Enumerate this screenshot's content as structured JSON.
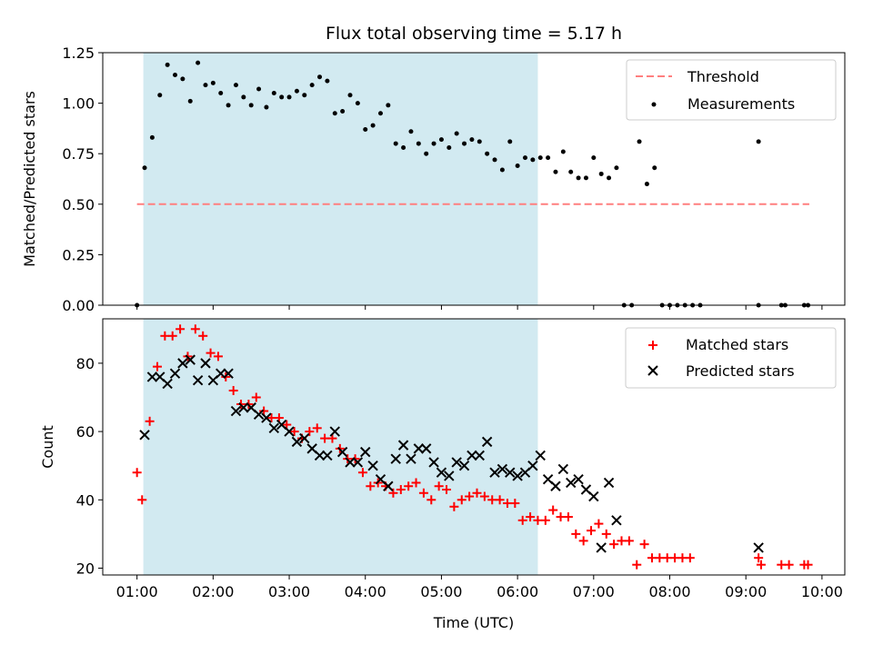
{
  "chart_data": {
    "title": "Flux total observing time = 5.17 h",
    "xlabel": "Time (UTC)",
    "x_ticks": [
      "01:00",
      "02:00",
      "03:00",
      "04:00",
      "05:00",
      "06:00",
      "07:00",
      "08:00",
      "09:00",
      "10:00"
    ],
    "xlim": [
      "00:33",
      "10:18"
    ],
    "shaded_interval": [
      "01:05",
      "06:16"
    ],
    "colors": {
      "shade": "#add8e6",
      "threshold": "#ff7f7f",
      "measurements": "#000000",
      "matched": "#ff0000",
      "predicted": "#000000"
    },
    "panels": [
      {
        "type": "scatter",
        "ylabel": "Matched/Predicted stars",
        "ylim": [
          0,
          1.25
        ],
        "y_ticks": [
          "0.00",
          "0.25",
          "0.50",
          "0.75",
          "1.00",
          "1.25"
        ],
        "legend": {
          "placement": "top-right",
          "entries": [
            "Threshold",
            "Measurements"
          ]
        },
        "threshold": {
          "name": "Threshold",
          "value": 0.5,
          "x_start": "01:00",
          "x_end": "09:50"
        },
        "series": [
          {
            "name": "Measurements",
            "marker": "dot",
            "points": [
              [
                "01:00",
                0.0
              ],
              [
                "01:06",
                0.68
              ],
              [
                "01:12",
                0.83
              ],
              [
                "01:18",
                1.04
              ],
              [
                "01:24",
                1.19
              ],
              [
                "01:30",
                1.14
              ],
              [
                "01:36",
                1.12
              ],
              [
                "01:42",
                1.01
              ],
              [
                "01:48",
                1.2
              ],
              [
                "01:54",
                1.09
              ],
              [
                "02:00",
                1.1
              ],
              [
                "02:06",
                1.05
              ],
              [
                "02:12",
                0.99
              ],
              [
                "02:18",
                1.09
              ],
              [
                "02:24",
                1.03
              ],
              [
                "02:30",
                0.99
              ],
              [
                "02:36",
                1.07
              ],
              [
                "02:42",
                0.98
              ],
              [
                "02:48",
                1.05
              ],
              [
                "02:54",
                1.03
              ],
              [
                "03:00",
                1.03
              ],
              [
                "03:06",
                1.06
              ],
              [
                "03:12",
                1.04
              ],
              [
                "03:18",
                1.09
              ],
              [
                "03:24",
                1.13
              ],
              [
                "03:30",
                1.11
              ],
              [
                "03:36",
                0.95
              ],
              [
                "03:42",
                0.96
              ],
              [
                "03:48",
                1.04
              ],
              [
                "03:54",
                1.0
              ],
              [
                "04:00",
                0.87
              ],
              [
                "04:06",
                0.89
              ],
              [
                "04:12",
                0.95
              ],
              [
                "04:18",
                0.99
              ],
              [
                "04:24",
                0.8
              ],
              [
                "04:30",
                0.78
              ],
              [
                "04:36",
                0.86
              ],
              [
                "04:42",
                0.8
              ],
              [
                "04:48",
                0.75
              ],
              [
                "04:54",
                0.8
              ],
              [
                "05:00",
                0.82
              ],
              [
                "05:06",
                0.78
              ],
              [
                "05:12",
                0.85
              ],
              [
                "05:18",
                0.8
              ],
              [
                "05:24",
                0.82
              ],
              [
                "05:30",
                0.81
              ],
              [
                "05:36",
                0.75
              ],
              [
                "05:42",
                0.72
              ],
              [
                "05:48",
                0.67
              ],
              [
                "05:54",
                0.81
              ],
              [
                "06:00",
                0.69
              ],
              [
                "06:06",
                0.73
              ],
              [
                "06:12",
                0.72
              ],
              [
                "06:18",
                0.73
              ],
              [
                "06:24",
                0.73
              ],
              [
                "06:30",
                0.66
              ],
              [
                "06:36",
                0.76
              ],
              [
                "06:42",
                0.66
              ],
              [
                "06:48",
                0.63
              ],
              [
                "06:54",
                0.63
              ],
              [
                "07:00",
                0.73
              ],
              [
                "07:06",
                0.65
              ],
              [
                "07:12",
                0.63
              ],
              [
                "07:18",
                0.68
              ],
              [
                "07:24",
                0.0
              ],
              [
                "07:30",
                0.0
              ],
              [
                "07:36",
                0.81
              ],
              [
                "07:42",
                0.6
              ],
              [
                "07:48",
                0.68
              ],
              [
                "07:54",
                0.0
              ],
              [
                "08:00",
                0.0
              ],
              [
                "08:06",
                0.0
              ],
              [
                "08:12",
                0.0
              ],
              [
                "08:18",
                0.0
              ],
              [
                "08:24",
                0.0
              ],
              [
                "09:10",
                0.81
              ],
              [
                "09:10",
                0.0
              ],
              [
                "09:28",
                0.0
              ],
              [
                "09:31",
                0.0
              ],
              [
                "09:46",
                0.0
              ],
              [
                "09:49",
                0.0
              ]
            ]
          }
        ]
      },
      {
        "type": "scatter",
        "ylabel": "Count",
        "ylim": [
          18,
          93
        ],
        "y_ticks": [
          "20",
          "40",
          "60",
          "80"
        ],
        "legend": {
          "placement": "top-right",
          "entries": [
            "Matched stars",
            "Predicted stars"
          ]
        },
        "series": [
          {
            "name": "Matched stars",
            "marker": "plus",
            "points": [
              [
                "01:00",
                48
              ],
              [
                "01:04",
                40
              ],
              [
                "01:10",
                63
              ],
              [
                "01:16",
                79
              ],
              [
                "01:22",
                88
              ],
              [
                "01:28",
                88
              ],
              [
                "01:34",
                90
              ],
              [
                "01:40",
                82
              ],
              [
                "01:46",
                90
              ],
              [
                "01:52",
                88
              ],
              [
                "01:58",
                83
              ],
              [
                "02:04",
                82
              ],
              [
                "02:10",
                76
              ],
              [
                "02:16",
                72
              ],
              [
                "02:22",
                68
              ],
              [
                "02:28",
                68
              ],
              [
                "02:34",
                70
              ],
              [
                "02:40",
                66
              ],
              [
                "02:46",
                64
              ],
              [
                "02:52",
                64
              ],
              [
                "02:58",
                62
              ],
              [
                "03:04",
                60
              ],
              [
                "03:10",
                58
              ],
              [
                "03:16",
                60
              ],
              [
                "03:22",
                61
              ],
              [
                "03:28",
                58
              ],
              [
                "03:34",
                58
              ],
              [
                "03:40",
                55
              ],
              [
                "03:46",
                52
              ],
              [
                "03:52",
                52
              ],
              [
                "03:58",
                48
              ],
              [
                "04:04",
                44
              ],
              [
                "04:10",
                45
              ],
              [
                "04:16",
                44
              ],
              [
                "04:22",
                42
              ],
              [
                "04:28",
                43
              ],
              [
                "04:34",
                44
              ],
              [
                "04:40",
                45
              ],
              [
                "04:46",
                42
              ],
              [
                "04:52",
                40
              ],
              [
                "04:58",
                44
              ],
              [
                "05:04",
                43
              ],
              [
                "05:10",
                38
              ],
              [
                "05:16",
                40
              ],
              [
                "05:22",
                41
              ],
              [
                "05:28",
                42
              ],
              [
                "05:34",
                41
              ],
              [
                "05:40",
                40
              ],
              [
                "05:46",
                40
              ],
              [
                "05:52",
                39
              ],
              [
                "05:58",
                39
              ],
              [
                "06:04",
                34
              ],
              [
                "06:10",
                35
              ],
              [
                "06:16",
                34
              ],
              [
                "06:22",
                34
              ],
              [
                "06:28",
                37
              ],
              [
                "06:34",
                35
              ],
              [
                "06:40",
                35
              ],
              [
                "06:46",
                30
              ],
              [
                "06:52",
                28
              ],
              [
                "06:58",
                31
              ],
              [
                "07:04",
                33
              ],
              [
                "07:10",
                30
              ],
              [
                "07:16",
                27
              ],
              [
                "07:22",
                28
              ],
              [
                "07:28",
                28
              ],
              [
                "07:34",
                21
              ],
              [
                "07:40",
                27
              ],
              [
                "07:46",
                23
              ],
              [
                "07:52",
                23
              ],
              [
                "07:58",
                23
              ],
              [
                "08:04",
                23
              ],
              [
                "08:10",
                23
              ],
              [
                "08:16",
                23
              ],
              [
                "09:10",
                23
              ],
              [
                "09:12",
                21
              ],
              [
                "09:28",
                21
              ],
              [
                "09:34",
                21
              ],
              [
                "09:46",
                21
              ],
              [
                "09:49",
                21
              ]
            ]
          },
          {
            "name": "Predicted stars",
            "marker": "x",
            "points": [
              [
                "01:06",
                59
              ],
              [
                "01:12",
                76
              ],
              [
                "01:18",
                76
              ],
              [
                "01:24",
                74
              ],
              [
                "01:30",
                77
              ],
              [
                "01:36",
                80
              ],
              [
                "01:42",
                81
              ],
              [
                "01:48",
                75
              ],
              [
                "01:54",
                80
              ],
              [
                "02:00",
                75
              ],
              [
                "02:06",
                77
              ],
              [
                "02:12",
                77
              ],
              [
                "02:18",
                66
              ],
              [
                "02:24",
                67
              ],
              [
                "02:30",
                67
              ],
              [
                "02:36",
                65
              ],
              [
                "02:42",
                64
              ],
              [
                "02:48",
                61
              ],
              [
                "02:54",
                62
              ],
              [
                "03:00",
                60
              ],
              [
                "03:06",
                57
              ],
              [
                "03:12",
                58
              ],
              [
                "03:18",
                55
              ],
              [
                "03:24",
                53
              ],
              [
                "03:30",
                53
              ],
              [
                "03:36",
                60
              ],
              [
                "03:42",
                54
              ],
              [
                "03:48",
                51
              ],
              [
                "03:54",
                51
              ],
              [
                "04:00",
                54
              ],
              [
                "04:06",
                50
              ],
              [
                "04:12",
                46
              ],
              [
                "04:18",
                44
              ],
              [
                "04:24",
                52
              ],
              [
                "04:30",
                56
              ],
              [
                "04:36",
                52
              ],
              [
                "04:42",
                55
              ],
              [
                "04:48",
                55
              ],
              [
                "04:54",
                51
              ],
              [
                "05:00",
                48
              ],
              [
                "05:06",
                47
              ],
              [
                "05:12",
                51
              ],
              [
                "05:18",
                50
              ],
              [
                "05:24",
                53
              ],
              [
                "05:30",
                53
              ],
              [
                "05:36",
                57
              ],
              [
                "05:42",
                48
              ],
              [
                "05:48",
                49
              ],
              [
                "05:54",
                48
              ],
              [
                "06:00",
                47
              ],
              [
                "06:06",
                48
              ],
              [
                "06:12",
                50
              ],
              [
                "06:18",
                53
              ],
              [
                "06:24",
                46
              ],
              [
                "06:30",
                44
              ],
              [
                "06:36",
                49
              ],
              [
                "06:42",
                45
              ],
              [
                "06:48",
                46
              ],
              [
                "06:54",
                43
              ],
              [
                "07:00",
                41
              ],
              [
                "07:06",
                26
              ],
              [
                "07:12",
                45
              ],
              [
                "07:18",
                34
              ],
              [
                "09:10",
                26
              ]
            ]
          }
        ]
      }
    ]
  }
}
